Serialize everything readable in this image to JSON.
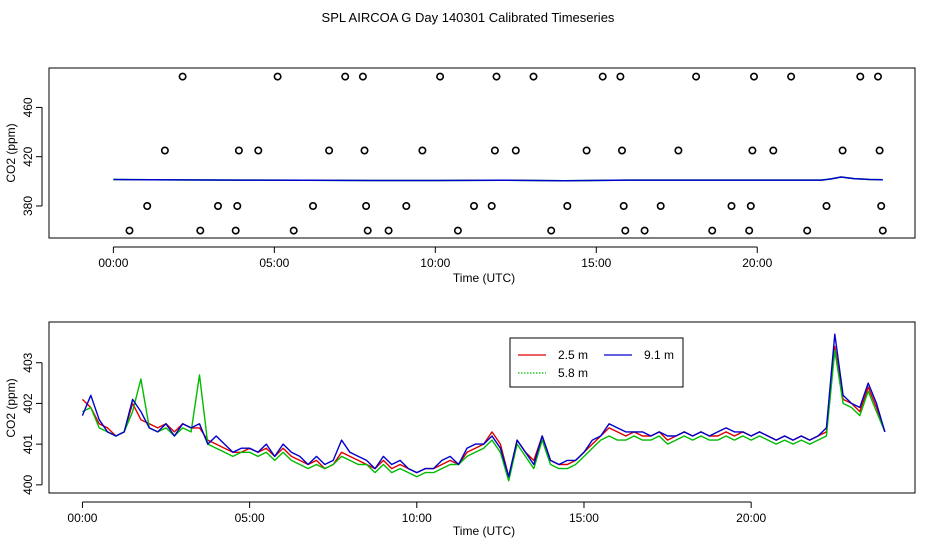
{
  "title": "SPL AIRCOA G  Day 140301  Calibrated Timeseries",
  "chart_data": [
    {
      "type": "line+scatter",
      "xlabel": "Time (UTC)",
      "ylabel": "CO2 (ppm)",
      "xlim": [
        -2.0,
        24.9
      ],
      "ylim": [
        354,
        492
      ],
      "xticks": [
        0,
        5,
        10,
        15,
        20
      ],
      "xtick_labels": [
        "00:00",
        "05:00",
        "10:00",
        "15:00",
        "20:00"
      ],
      "yticks": [
        380,
        420,
        460
      ],
      "ytick_labels": [
        "380",
        "420",
        "460"
      ],
      "series_colors": [
        "#00cc00",
        "#0000cc"
      ],
      "series_line_x": [
        0,
        2,
        4,
        6,
        8,
        10,
        12,
        14,
        16,
        18,
        20,
        21,
        22,
        22.3,
        22.6,
        23,
        23.5,
        23.9
      ],
      "series_line_y": [
        401.5,
        401.2,
        401.0,
        400.8,
        400.7,
        400.7,
        400.9,
        400.5,
        401.0,
        401.0,
        401.0,
        401.0,
        401.0,
        402.0,
        403.5,
        402.2,
        401.5,
        401.3
      ],
      "markers_x": [
        0.5,
        1.05,
        1.6,
        2.15,
        2.7,
        3.25,
        3.8,
        3.85,
        3.9,
        4.5,
        5.1,
        5.6,
        6.2,
        6.7,
        7.2,
        7.75,
        7.8,
        7.85,
        7.9,
        8.55,
        9.1,
        9.6,
        10.15,
        10.7,
        11.2,
        11.75,
        11.85,
        11.9,
        12.5,
        13.05,
        13.6,
        14.1,
        14.7,
        15.2,
        15.75,
        15.8,
        15.85,
        15.9,
        16.5,
        17.0,
        17.55,
        18.1,
        18.6,
        19.2,
        19.75,
        19.8,
        19.85,
        19.9,
        20.5,
        21.05,
        21.55,
        22.15,
        22.65,
        23.2,
        23.75,
        23.8,
        23.85,
        23.9
      ],
      "markers_y": [
        360,
        380,
        425,
        485,
        360,
        380,
        360,
        380,
        425,
        425,
        485,
        360,
        380,
        425,
        485,
        485,
        425,
        380,
        360,
        360,
        380,
        425,
        485,
        360,
        380,
        380,
        425,
        485,
        425,
        485,
        360,
        380,
        425,
        485,
        485,
        425,
        380,
        360,
        360,
        380,
        425,
        485,
        360,
        380,
        360,
        380,
        425,
        485,
        425,
        485,
        360,
        380,
        425,
        485,
        485,
        425,
        380,
        360
      ]
    },
    {
      "type": "line",
      "xlabel": "Time (UTC)",
      "ylabel": "CO2 (ppm)",
      "xlim": [
        -1.0,
        24.9
      ],
      "ylim": [
        399.8,
        404.0
      ],
      "xticks": [
        0,
        5,
        10,
        15,
        20
      ],
      "xtick_labels": [
        "00:00",
        "05:00",
        "10:00",
        "15:00",
        "20:00"
      ],
      "yticks": [
        400,
        401,
        402,
        403
      ],
      "ytick_labels": [
        "400",
        "401",
        "402",
        "403"
      ],
      "legend": {
        "position": "top-center",
        "entries": [
          {
            "label": "2.5 m",
            "color": "#dd0000",
            "style": "solid"
          },
          {
            "label": "5.8 m",
            "color": "#00bb00",
            "style": "dotted"
          },
          {
            "label": "9.1 m",
            "color": "#0000cc",
            "style": "solid"
          }
        ]
      },
      "x": [
        0,
        0.25,
        0.5,
        0.75,
        1,
        1.25,
        1.5,
        1.75,
        2,
        2.25,
        2.5,
        2.75,
        3,
        3.25,
        3.5,
        3.75,
        4,
        4.25,
        4.5,
        4.75,
        5,
        5.25,
        5.5,
        5.75,
        6,
        6.25,
        6.5,
        6.75,
        7,
        7.25,
        7.5,
        7.75,
        8,
        8.25,
        8.5,
        8.75,
        9,
        9.25,
        9.5,
        9.75,
        10,
        10.25,
        10.5,
        10.75,
        11,
        11.25,
        11.5,
        11.75,
        12,
        12.25,
        12.5,
        12.75,
        13,
        13.25,
        13.5,
        13.75,
        14,
        14.25,
        14.5,
        14.75,
        15,
        15.25,
        15.5,
        15.75,
        16,
        16.25,
        16.5,
        16.75,
        17,
        17.25,
        17.5,
        17.75,
        18,
        18.25,
        18.5,
        18.75,
        19,
        19.25,
        19.5,
        19.75,
        20,
        20.25,
        20.5,
        20.75,
        21,
        21.25,
        21.5,
        21.75,
        22,
        22.25,
        22.5,
        22.75,
        23,
        23.25,
        23.5,
        23.75,
        24
      ],
      "series": [
        {
          "name": "2.5 m",
          "values": [
            402.1,
            401.9,
            401.5,
            401.4,
            401.2,
            401.3,
            402.0,
            401.6,
            401.5,
            401.4,
            401.5,
            401.3,
            401.5,
            401.4,
            401.4,
            401.1,
            401.0,
            400.9,
            400.8,
            400.8,
            400.9,
            400.8,
            400.9,
            400.7,
            400.9,
            400.7,
            400.6,
            400.5,
            400.6,
            400.4,
            400.5,
            400.8,
            400.7,
            400.6,
            400.5,
            400.4,
            400.6,
            400.4,
            400.5,
            400.4,
            400.3,
            400.4,
            400.4,
            400.5,
            400.6,
            400.5,
            400.8,
            400.9,
            401.0,
            401.3,
            401.0,
            400.2,
            401.1,
            400.8,
            400.6,
            401.2,
            400.6,
            400.5,
            400.5,
            400.6,
            400.8,
            401.0,
            401.2,
            401.4,
            401.3,
            401.2,
            401.3,
            401.2,
            401.2,
            401.3,
            401.1,
            401.2,
            401.3,
            401.2,
            401.3,
            401.2,
            401.2,
            401.3,
            401.2,
            401.3,
            401.2,
            401.3,
            401.2,
            401.1,
            401.2,
            401.1,
            401.2,
            401.1,
            401.2,
            401.3,
            403.4,
            402.1,
            402.0,
            401.8,
            402.4,
            401.9,
            401.3
          ]
        },
        {
          "name": "5.8 m",
          "values": [
            401.8,
            401.9,
            401.4,
            401.3,
            401.2,
            401.3,
            401.8,
            402.6,
            401.4,
            401.3,
            401.4,
            401.2,
            401.4,
            401.3,
            402.7,
            401.0,
            400.9,
            400.8,
            400.7,
            400.8,
            400.8,
            400.7,
            400.8,
            400.6,
            400.8,
            400.6,
            400.5,
            400.4,
            400.5,
            400.4,
            400.5,
            400.7,
            400.6,
            400.5,
            400.5,
            400.3,
            400.5,
            400.3,
            400.4,
            400.3,
            400.2,
            400.3,
            400.3,
            400.4,
            400.5,
            400.5,
            400.7,
            400.8,
            400.9,
            401.1,
            400.8,
            400.1,
            401.0,
            400.7,
            400.4,
            401.1,
            400.5,
            400.4,
            400.4,
            400.5,
            400.7,
            400.9,
            401.1,
            401.2,
            401.1,
            401.1,
            401.2,
            401.1,
            401.1,
            401.2,
            401.0,
            401.1,
            401.2,
            401.1,
            401.2,
            401.1,
            401.1,
            401.2,
            401.1,
            401.2,
            401.1,
            401.2,
            401.1,
            401.0,
            401.1,
            401.0,
            401.1,
            401.0,
            401.1,
            401.2,
            403.3,
            402.0,
            401.9,
            401.7,
            402.3,
            401.8,
            401.3
          ]
        },
        {
          "name": "9.1 m",
          "values": [
            401.7,
            402.2,
            401.6,
            401.3,
            401.2,
            401.3,
            402.1,
            401.8,
            401.4,
            401.3,
            401.5,
            401.2,
            401.5,
            401.4,
            401.5,
            401.0,
            401.2,
            401.0,
            400.8,
            400.9,
            400.9,
            400.8,
            401.0,
            400.7,
            401.0,
            400.8,
            400.7,
            400.5,
            400.7,
            400.5,
            400.6,
            401.1,
            400.8,
            400.7,
            400.6,
            400.4,
            400.7,
            400.5,
            400.6,
            400.4,
            400.3,
            400.4,
            400.4,
            400.6,
            400.7,
            400.5,
            400.9,
            401.0,
            401.0,
            401.2,
            400.9,
            400.2,
            401.1,
            400.8,
            400.5,
            401.2,
            400.6,
            400.5,
            400.6,
            400.6,
            400.8,
            401.1,
            401.2,
            401.5,
            401.4,
            401.3,
            401.3,
            401.3,
            401.2,
            401.3,
            401.2,
            401.2,
            401.3,
            401.2,
            401.3,
            401.2,
            401.3,
            401.4,
            401.3,
            401.3,
            401.2,
            401.3,
            401.2,
            401.1,
            401.2,
            401.1,
            401.2,
            401.1,
            401.2,
            401.4,
            403.7,
            402.2,
            402.0,
            401.9,
            402.5,
            402.0,
            401.3
          ]
        }
      ]
    }
  ]
}
